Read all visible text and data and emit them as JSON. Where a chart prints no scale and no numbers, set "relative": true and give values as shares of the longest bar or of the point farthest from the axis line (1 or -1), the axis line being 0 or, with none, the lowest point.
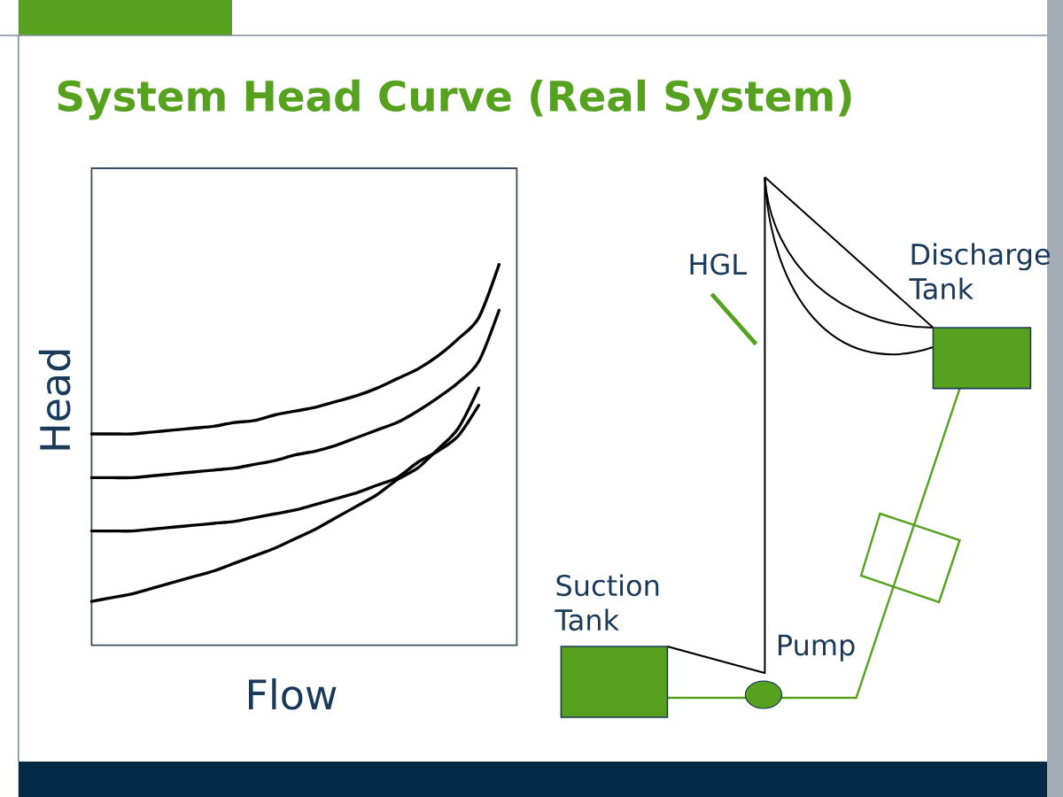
{
  "chart_data": {
    "type": "line",
    "title": "System Head Curve (Real System)",
    "xlabel": "Flow",
    "ylabel": "Head",
    "relative": true,
    "categories": [
      null,
      null,
      null,
      null,
      null,
      null,
      null,
      null,
      null,
      null,
      null,
      null,
      null,
      null,
      null,
      null,
      null,
      null,
      null,
      null,
      null
    ],
    "series": [
      {
        "color": "#000000",
        "values": [
          0.555,
          0.555,
          0.555,
          0.56,
          0.565,
          0.57,
          0.575,
          0.585,
          0.59,
          0.605,
          0.615,
          0.625,
          0.64,
          0.655,
          0.675,
          0.7,
          0.725,
          0.76,
          0.805,
          0.86,
          1
        ]
      },
      {
        "color": "#000000",
        "values": [
          0.44,
          0.44,
          0.44,
          0.445,
          0.45,
          0.455,
          0.46,
          0.465,
          0.475,
          0.485,
          0.5,
          0.51,
          0.525,
          0.545,
          0.565,
          0.585,
          0.615,
          0.65,
          0.69,
          0.745,
          0.88
        ]
      },
      {
        "color": "#000000",
        "values": [
          0.3,
          0.3,
          0.3,
          0.305,
          0.31,
          0.315,
          0.32,
          0.325,
          0.335,
          0.345,
          0.355,
          0.37,
          0.385,
          0.4,
          0.42,
          0.44,
          0.48,
          0.51,
          0.55,
          0.63,
          null
        ]
      },
      {
        "color": "#000000",
        "values": [
          0.115,
          0.125,
          0.135,
          0.15,
          0.165,
          0.18,
          0.195,
          0.215,
          0.235,
          0.255,
          0.28,
          0.305,
          0.335,
          0.365,
          0.395,
          0.435,
          0.465,
          0.515,
          0.57,
          0.675,
          null
        ]
      }
    ],
    "annotations": [
      "HGL",
      "Discharge Tank",
      "Suction Tank",
      "Pump"
    ]
  }
}
